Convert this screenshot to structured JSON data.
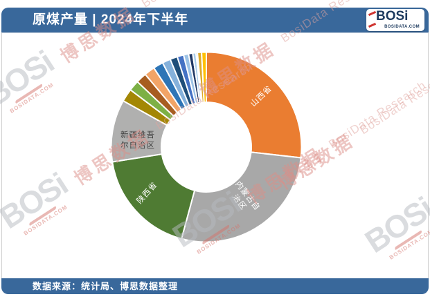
{
  "header": {
    "title": "原煤产量 | 2024年下半年",
    "logo": {
      "brand": "BOSi",
      "site": "BOSIDATA.COM"
    }
  },
  "footer": {
    "source_text": "数据来源：统计局、博思数据整理"
  },
  "watermark": {
    "brand": "BOSi",
    "site": "BOSIDATA.COM",
    "cn": "博思数据",
    "en": "BosiData Research"
  },
  "colors": {
    "header_bg": "#39689B",
    "footer_bg": "#39689B",
    "panel_bg": "#ffffff",
    "label_light": "#ffffff",
    "label_dark": "#3E3E3E"
  },
  "chart_data": {
    "type": "pie",
    "subtype": "donut",
    "title": "原煤产量 | 2024年下半年",
    "unit": "share_percent_estimated",
    "start_angle_deg": 0,
    "direction": "clockwise",
    "inner_radius_ratio": 0.47,
    "legend": "none",
    "labels_shown": [
      "山西省",
      "内蒙古自治区",
      "陕西省",
      "新疆维吾尔自治区"
    ],
    "segments": [
      {
        "label": "山西省",
        "value": 26.8,
        "color": "#EA7D31"
      },
      {
        "label": "内蒙古自治区",
        "value": 27.4,
        "color": "#A8A8A8"
      },
      {
        "label": "陕西省",
        "value": 18.3,
        "color": "#4F7B33"
      },
      {
        "label": "新疆维吾尔自治区",
        "value": 10.6,
        "color": "#B0B0AF"
      },
      {
        "label": "",
        "value": 2.2,
        "color": "#A38705"
      },
      {
        "label": "",
        "value": 1.8,
        "color": "#7DB045"
      },
      {
        "label": "",
        "value": 1.8,
        "color": "#A75D20"
      },
      {
        "label": "",
        "value": 1.8,
        "color": "#F2A467"
      },
      {
        "label": "",
        "value": 1.7,
        "color": "#2E75B6"
      },
      {
        "label": "",
        "value": 1.4,
        "color": "#85B1DB"
      },
      {
        "label": "",
        "value": 1.25,
        "color": "#1F4E79"
      },
      {
        "label": "",
        "value": 1.1,
        "color": "#4472C4"
      },
      {
        "label": "",
        "value": 0.85,
        "color": "#9DC3E6"
      },
      {
        "label": "",
        "value": 0.7,
        "color": "#203864"
      },
      {
        "label": "",
        "value": 0.55,
        "color": "#A9CCE9"
      },
      {
        "label": "",
        "value": 0.25,
        "color": "#1F1F1F"
      },
      {
        "label": "",
        "value": 0.7,
        "color": "#DCA92B"
      },
      {
        "label": "",
        "value": 0.8,
        "color": "#FFC000"
      }
    ]
  }
}
